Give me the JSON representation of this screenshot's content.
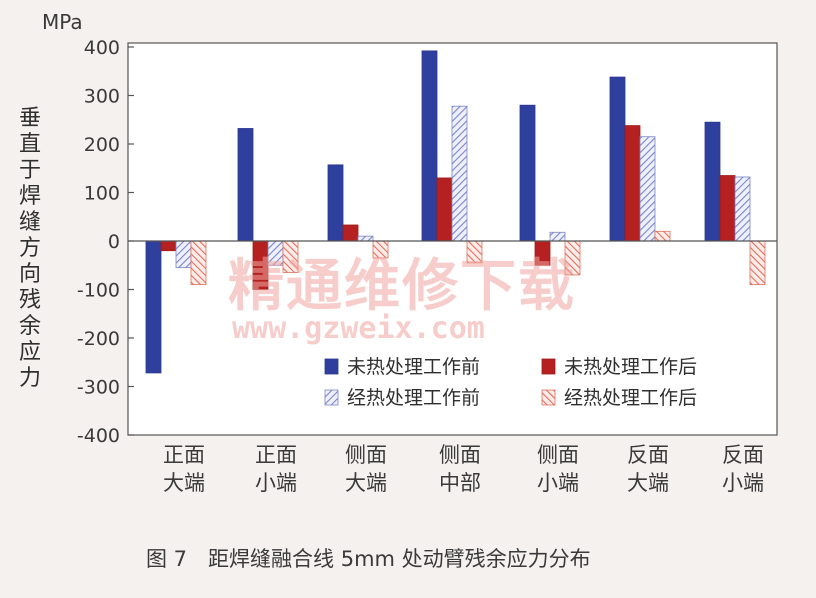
{
  "chart_data": {
    "type": "bar",
    "unit": "MPa",
    "ylabel": "垂直于焊缝方向残余应力",
    "ylim": [
      -400,
      400
    ],
    "yticks": [
      400,
      300,
      200,
      100,
      0,
      -100,
      -200,
      -300,
      -400
    ],
    "categories": [
      "正面\n大端",
      "正面\n小端",
      "侧面\n大端",
      "侧面\n中部",
      "侧面\n小端",
      "反面\n大端",
      "反面\n小端"
    ],
    "series": [
      {
        "name": "未热处理工作前",
        "color": "#2f3f9e",
        "pattern": "solid",
        "values": [
          -272,
          232,
          157,
          392,
          280,
          338,
          245
        ]
      },
      {
        "name": "未热处理工作后",
        "color": "#b52020",
        "pattern": "solid",
        "values": [
          -20,
          -100,
          33,
          130,
          -50,
          238,
          135
        ]
      },
      {
        "name": "经热处理工作前",
        "color": "#7a86c8",
        "pattern": "hatch",
        "values": [
          -55,
          -50,
          10,
          278,
          18,
          215,
          132
        ]
      },
      {
        "name": "经热处理工作后",
        "color": "#e0705a",
        "pattern": "hatch",
        "values": [
          -90,
          -65,
          -35,
          -45,
          -70,
          20,
          -90
        ]
      }
    ],
    "grid": false,
    "legend_position": "bottom-right",
    "caption": "图 7　距焊缝融合线 5mm 处动臂残余应力分布"
  },
  "watermark": {
    "text": "精通维修下载",
    "url": "www.gzweix.com"
  }
}
